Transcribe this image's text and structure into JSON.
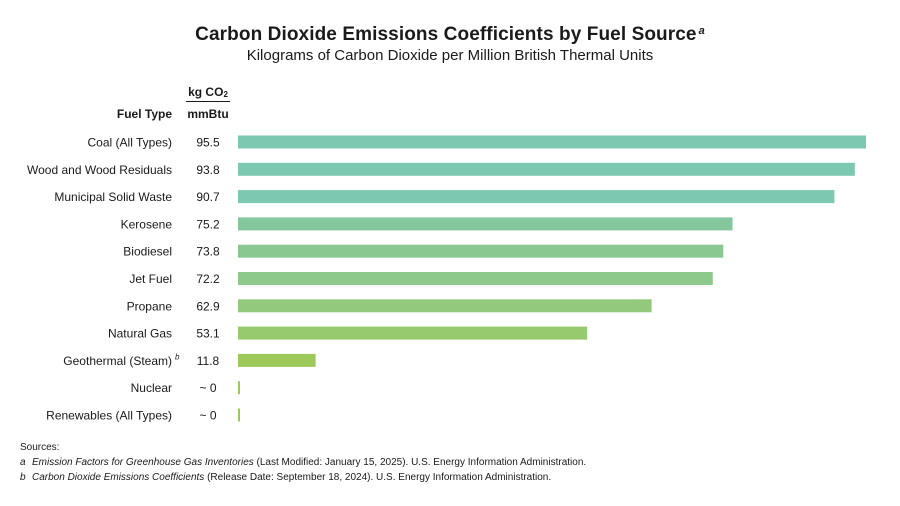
{
  "header": {
    "title": "Carbon Dioxide Emissions Coefficients by Fuel Source",
    "title_marker": "a",
    "subtitle": "Kilograms of Carbon Dioxide per Million British Thermal Units",
    "fuel_type_label": "Fuel Type",
    "unit_label_top": "kg CO",
    "unit_label_sub": "2",
    "unit_label_bottom": "mmBtu"
  },
  "chart_data": {
    "type": "bar",
    "orientation": "horizontal",
    "categories": [
      "Coal (All Types)",
      "Wood and Wood Residuals",
      "Municipal Solid Waste",
      "Kerosene",
      "Biodiesel",
      "Jet Fuel",
      "Propane",
      "Natural Gas",
      "Geothermal (Steam)",
      "Nuclear",
      "Renewables (All Types)"
    ],
    "category_markers": [
      "",
      "",
      "",
      "",
      "",
      "",
      "",
      "",
      "b",
      "",
      ""
    ],
    "values": [
      95.5,
      93.8,
      90.7,
      75.2,
      73.8,
      72.2,
      62.9,
      53.1,
      11.8,
      0,
      0
    ],
    "value_labels": [
      "95.5",
      "93.8",
      "90.7",
      "75.2",
      "73.8",
      "72.2",
      "62.9",
      "53.1",
      "11.8",
      "~ 0",
      "~ 0"
    ],
    "bar_colors": [
      "#7dc8b0",
      "#7dc8b0",
      "#7dc8b0",
      "#84c79d",
      "#8ac892",
      "#8dc98a",
      "#93c97c",
      "#97c96e",
      "#9dc95a",
      "#9dc95a",
      "#9dc95a"
    ],
    "xlim": [
      0,
      95.5
    ],
    "grid": false,
    "legend": "none"
  },
  "sources": {
    "heading": "Sources:",
    "items": [
      {
        "tag": "a",
        "title": "Emission Factors for Greenhouse Gas Inventories",
        "rest": " (Last Modified: January 15, 2025).  U.S. Energy Information Administration."
      },
      {
        "tag": "b",
        "title": "Carbon Dioxide Emissions Coefficients",
        "rest": " (Release Date: September 18, 2024).  U.S. Energy Information Administration."
      }
    ]
  }
}
